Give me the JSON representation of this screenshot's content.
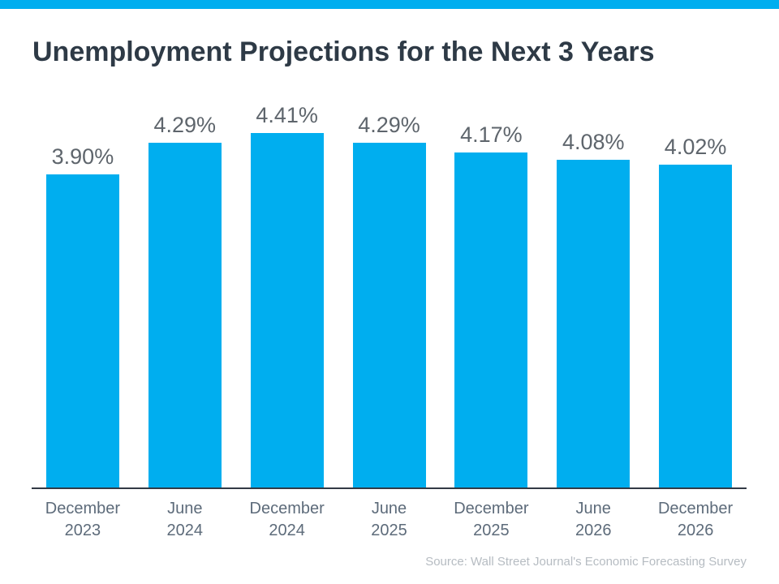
{
  "page": {
    "title": "Unemployment Projections for the Next 3 Years",
    "source_note": "Source: Wall Street Journal's Economic Forecasting Survey"
  },
  "colors": {
    "accent_cyan": "#00AEEF",
    "bar_fill": "#00AEEF",
    "title_text": "#2E3A46",
    "value_label_text": "#5E656C",
    "axis_label_text": "#5D6B7A",
    "axis_line": "#323A45",
    "source_text": "#B6BCC2",
    "background": "#FFFFFF"
  },
  "chart_data": {
    "type": "bar",
    "title": "Unemployment Projections for the Next 3 Years",
    "categories": [
      "December 2023",
      "June 2024",
      "December 2024",
      "June 2025",
      "December 2025",
      "June 2026",
      "December 2026"
    ],
    "category_lines": [
      [
        "December",
        "2023"
      ],
      [
        "June",
        "2024"
      ],
      [
        "December",
        "2024"
      ],
      [
        "June",
        "2025"
      ],
      [
        "December",
        "2025"
      ],
      [
        "June",
        "2026"
      ],
      [
        "December",
        "2026"
      ]
    ],
    "values": [
      3.9,
      4.29,
      4.41,
      4.29,
      4.17,
      4.08,
      4.02
    ],
    "value_labels": [
      "3.90%",
      "4.29%",
      "4.41%",
      "4.29%",
      "4.17%",
      "4.08%",
      "4.02%"
    ],
    "unit": "%",
    "xlabel": "",
    "ylabel": "",
    "ylim": [
      0,
      4.95
    ],
    "grid": false,
    "legend": false,
    "annotation_style": "value labels above bars",
    "source": "Source: Wall Street Journal's Economic Forecasting Survey"
  }
}
